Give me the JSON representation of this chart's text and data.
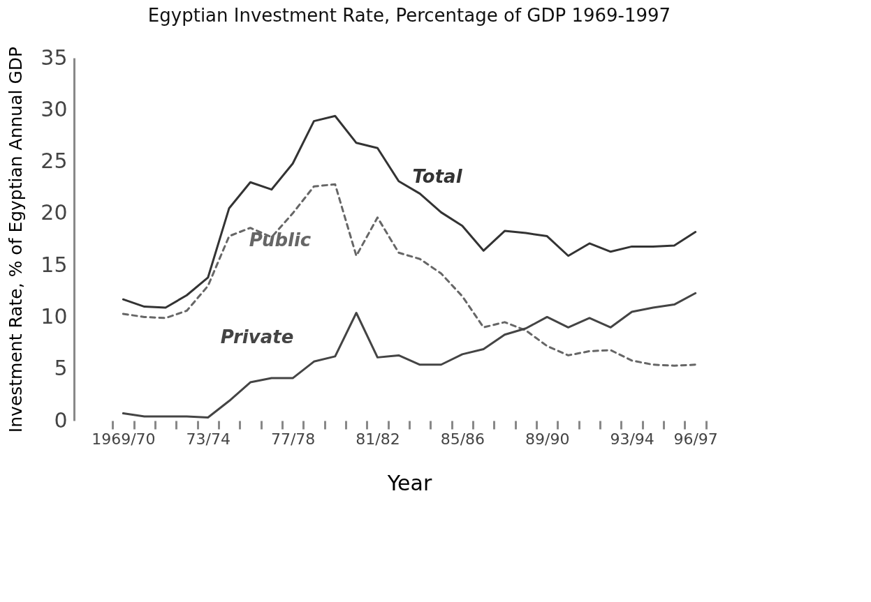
{
  "chart_data": {
    "type": "line",
    "title": "Egyptian Investment Rate, Percentage of GDP 1969-1997",
    "xlabel": "Year",
    "ylabel": "Investment Rate, % of Egyptian Annual GDP",
    "categories": [
      "1969/70",
      null,
      null,
      null,
      "73/74",
      null,
      null,
      null,
      "77/78",
      null,
      null,
      null,
      "81/82",
      null,
      null,
      null,
      "85/86",
      null,
      null,
      null,
      "89/90",
      null,
      null,
      null,
      "93/94",
      null,
      null,
      "96/97"
    ],
    "series": [
      {
        "name": "Total",
        "color": "#333333",
        "line_style": "solid",
        "values": [
          11.7,
          11.0,
          10.9,
          12.1,
          13.8,
          20.5,
          23.0,
          22.3,
          24.8,
          28.9,
          29.4,
          26.8,
          26.3,
          23.1,
          21.9,
          20.1,
          18.8,
          16.4,
          18.3,
          18.1,
          17.8,
          15.9,
          17.1,
          16.3,
          16.8,
          16.8,
          16.9,
          18.2
        ]
      },
      {
        "name": "Public",
        "color": "#666666",
        "line_style": "dashed",
        "values": [
          10.3,
          10.0,
          9.9,
          10.6,
          13.0,
          17.8,
          18.6,
          17.7,
          20.0,
          22.6,
          22.8,
          15.9,
          19.6,
          16.2,
          15.6,
          14.2,
          12.0,
          9.0,
          9.5,
          8.7,
          7.2,
          6.3,
          6.7,
          6.8,
          5.8,
          5.4,
          5.3,
          5.4
        ]
      },
      {
        "name": "Private",
        "color": "#444444",
        "line_style": "solid",
        "values": [
          0.7,
          0.4,
          0.4,
          0.4,
          0.3,
          1.9,
          3.7,
          4.1,
          4.1,
          5.7,
          6.2,
          10.4,
          6.1,
          6.3,
          5.4,
          5.4,
          6.4,
          6.9,
          8.3,
          8.9,
          10.0,
          9.0,
          9.9,
          9.0,
          10.5,
          10.9,
          11.2,
          12.3
        ]
      }
    ],
    "ylim": [
      0,
      35
    ],
    "yticks": [
      0,
      5,
      10,
      15,
      20,
      25,
      30,
      35
    ],
    "grid": false,
    "legend": false,
    "marker": "none"
  }
}
